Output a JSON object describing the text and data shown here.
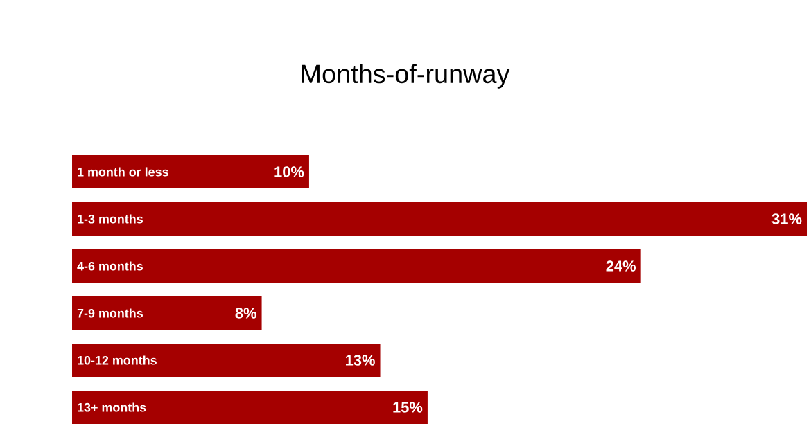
{
  "chart_data": {
    "type": "bar",
    "orientation": "horizontal",
    "title": "Months-of-runway",
    "categories": [
      "1 month or less",
      "1-3 months",
      "4-6 months",
      "7-9 months",
      "10-12 months",
      "13+ months"
    ],
    "values": [
      10,
      31,
      24,
      8,
      13,
      15
    ],
    "value_labels": [
      "10%",
      "31%",
      "24%",
      "8%",
      "13%",
      "15%"
    ],
    "color": "#a50000"
  }
}
